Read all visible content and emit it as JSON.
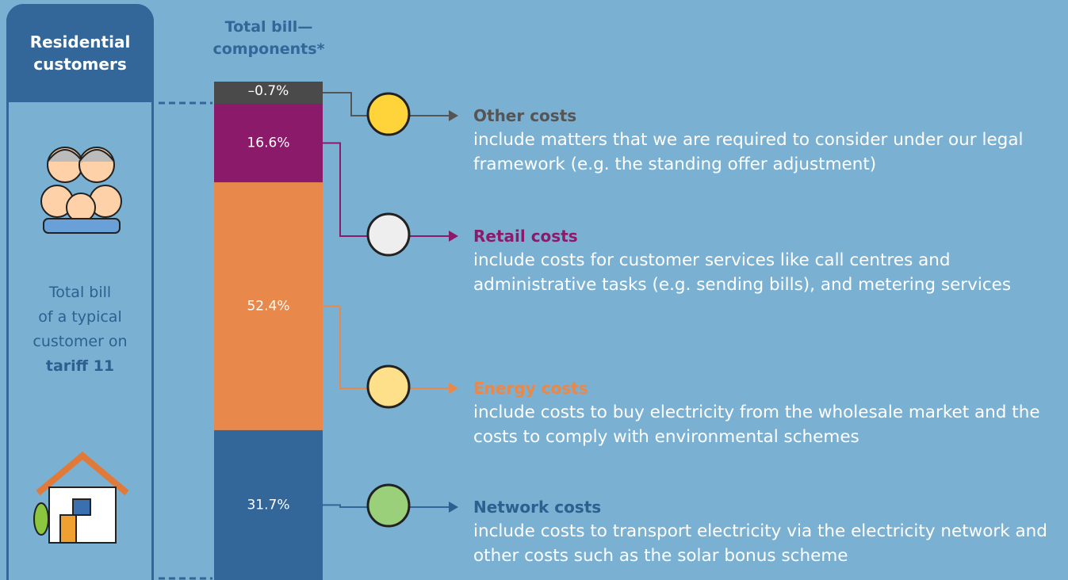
{
  "panel": {
    "title": "Residential customers",
    "description_lines": [
      "Total bill",
      "of a typical",
      "customer on"
    ],
    "description_bold": "tariff 11"
  },
  "chart_data": {
    "type": "stacked-bar",
    "title": "Total bill—components*",
    "series": [
      {
        "name": "Other costs",
        "color": "#4a4a4a",
        "heading_color": "#555555",
        "values": [
          -0.7
        ],
        "value_labels": [
          "–0.7%"
        ],
        "description": "include matters that we are required to consider under our legal framework (e.g. the standing offer adjustment)"
      },
      {
        "name": "Retail costs",
        "color": "#8c1a6a",
        "heading_color": "#8c1a6a",
        "values": [
          16.6
        ],
        "value_labels": [
          "16.6%"
        ],
        "description": "include costs for customer services like call centres and administrative tasks (e.g. sending bills), and metering services"
      },
      {
        "name": "Energy costs",
        "color": "#e8884a",
        "heading_color": "#e8884a",
        "values": [
          52.4
        ],
        "value_labels": [
          "52.4%"
        ],
        "description": "include costs to buy electricity from the wholesale market and the costs to comply with environmental schemes"
      },
      {
        "name": "Network costs",
        "color": "#336699",
        "heading_color": "#2d5f8f",
        "values": [
          31.7
        ],
        "value_labels": [
          "31.7%"
        ],
        "description": "include costs to transport electricity via the electricity network and other costs such as the solar bonus scheme"
      }
    ]
  }
}
